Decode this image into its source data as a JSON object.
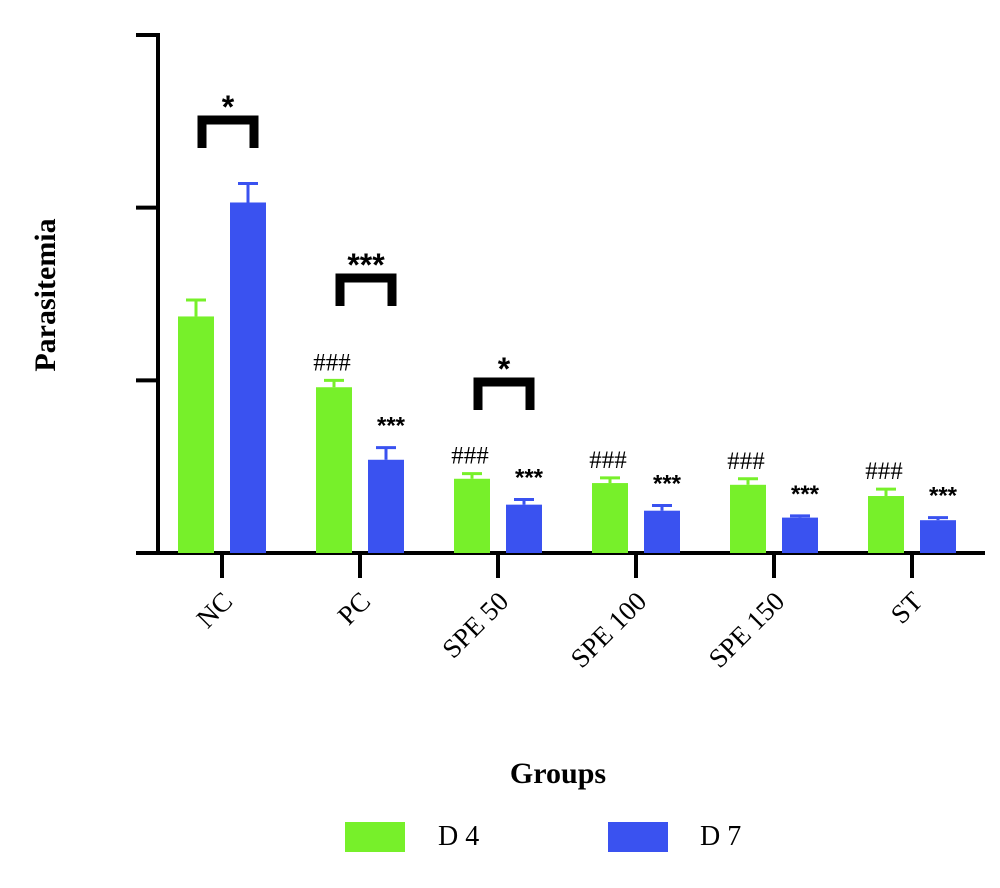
{
  "chart_data": {
    "type": "bar",
    "xlabel": "Groups",
    "ylabel": "Parasitemia",
    "categories": [
      "NC",
      "PC",
      "SPE 50",
      "SPE 100",
      "SPE 150",
      "ST"
    ],
    "ylim": [
      0,
      30
    ],
    "yticks": [
      0,
      10,
      20,
      30
    ],
    "y_tick_labels_shown": false,
    "grid": false,
    "legend_position": "bottom",
    "series": [
      {
        "name": "D 4",
        "color": "#77f02a",
        "values": [
          13.7,
          9.6,
          4.3,
          4.05,
          3.95,
          3.3
        ],
        "errors": [
          0.95,
          0.4,
          0.3,
          0.3,
          0.35,
          0.4
        ],
        "labels": [
          "",
          "###",
          "###",
          "###",
          "###",
          "###"
        ]
      },
      {
        "name": "D 7",
        "color": "#3a52f0",
        "values": [
          20.3,
          5.4,
          2.8,
          2.45,
          2.05,
          1.9
        ],
        "errors": [
          1.1,
          0.7,
          0.3,
          0.3,
          0.1,
          0.15
        ],
        "labels": [
          "",
          "***",
          "***",
          "***",
          "***",
          "***"
        ]
      }
    ],
    "brackets": [
      {
        "category": "NC",
        "label": "*"
      },
      {
        "category": "PC",
        "label": "***"
      },
      {
        "category": "SPE 50",
        "label": "*"
      }
    ]
  }
}
